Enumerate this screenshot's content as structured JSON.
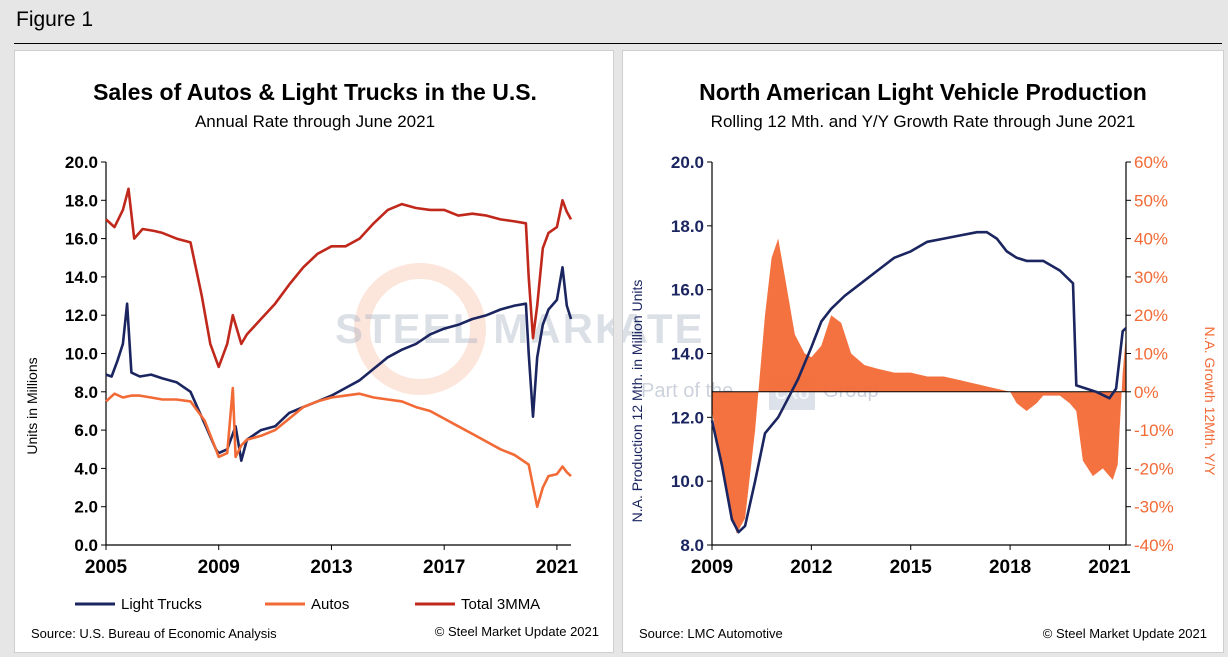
{
  "figure_label": "Figure 1",
  "chart_data": [
    {
      "type": "line",
      "title": "Sales of Autos & Light Trucks in the U.S.",
      "subtitle": "Annual Rate through June 2021",
      "ylabel": "Units in Millions",
      "ylim": [
        0,
        20
      ],
      "yticks": [
        "0.0",
        "2.0",
        "4.0",
        "6.0",
        "8.0",
        "10.0",
        "12.0",
        "14.0",
        "16.0",
        "18.0",
        "20.0"
      ],
      "xlim": [
        2005,
        2021.5
      ],
      "xticks": [
        "2005",
        "2009",
        "2013",
        "2017",
        "2021"
      ],
      "legend_position": "bottom",
      "series": [
        {
          "name": "Light Trucks",
          "color": "#1b2560",
          "x": [
            2005.0,
            2005.2,
            2005.4,
            2005.6,
            2005.75,
            2005.9,
            2006.2,
            2006.6,
            2007.0,
            2007.5,
            2008.0,
            2008.3,
            2008.6,
            2008.9,
            2009.0,
            2009.3,
            2009.6,
            2009.8,
            2010.0,
            2010.5,
            2011.0,
            2011.5,
            2012.0,
            2012.5,
            2013.0,
            2013.5,
            2014.0,
            2014.5,
            2015.0,
            2015.5,
            2016.0,
            2016.5,
            2017.0,
            2017.5,
            2018.0,
            2018.5,
            2019.0,
            2019.5,
            2019.9,
            2020.0,
            2020.15,
            2020.3,
            2020.5,
            2020.7,
            2021.0,
            2021.2,
            2021.35,
            2021.5
          ],
          "values": [
            8.9,
            8.8,
            9.6,
            10.5,
            12.6,
            9.0,
            8.8,
            8.9,
            8.7,
            8.5,
            8.0,
            7.0,
            6.0,
            5.0,
            4.8,
            5.0,
            6.2,
            4.4,
            5.5,
            6.0,
            6.2,
            6.9,
            7.2,
            7.5,
            7.8,
            8.2,
            8.6,
            9.2,
            9.8,
            10.2,
            10.5,
            11.0,
            11.3,
            11.5,
            11.8,
            12.0,
            12.3,
            12.5,
            12.6,
            10.0,
            6.7,
            9.8,
            11.5,
            12.3,
            12.8,
            14.5,
            12.5,
            11.8
          ]
        },
        {
          "name": "Autos",
          "color": "#f26a36",
          "x": [
            2005.0,
            2005.3,
            2005.6,
            2005.9,
            2006.2,
            2006.6,
            2007.0,
            2007.5,
            2008.0,
            2008.5,
            2008.9,
            2009.0,
            2009.3,
            2009.5,
            2009.6,
            2009.8,
            2010.0,
            2010.5,
            2011.0,
            2011.5,
            2012.0,
            2012.5,
            2013.0,
            2013.5,
            2014.0,
            2014.5,
            2015.0,
            2015.5,
            2016.0,
            2016.5,
            2017.0,
            2017.5,
            2018.0,
            2018.5,
            2019.0,
            2019.5,
            2020.0,
            2020.3,
            2020.5,
            2020.7,
            2021.0,
            2021.2,
            2021.35,
            2021.5
          ],
          "values": [
            7.5,
            7.9,
            7.7,
            7.8,
            7.8,
            7.7,
            7.6,
            7.6,
            7.5,
            6.5,
            5.0,
            4.6,
            4.8,
            8.2,
            4.6,
            5.2,
            5.5,
            5.7,
            6.0,
            6.6,
            7.2,
            7.5,
            7.7,
            7.8,
            7.9,
            7.7,
            7.6,
            7.5,
            7.2,
            7.0,
            6.6,
            6.2,
            5.8,
            5.4,
            5.0,
            4.7,
            4.2,
            2.0,
            3.0,
            3.6,
            3.7,
            4.1,
            3.8,
            3.6
          ]
        },
        {
          "name": "Total 3MMA",
          "color": "#c0281c",
          "x": [
            2005.0,
            2005.3,
            2005.6,
            2005.8,
            2006.0,
            2006.3,
            2006.7,
            2007.0,
            2007.5,
            2008.0,
            2008.4,
            2008.7,
            2009.0,
            2009.3,
            2009.5,
            2009.8,
            2010.0,
            2010.5,
            2011.0,
            2011.5,
            2012.0,
            2012.5,
            2013.0,
            2013.5,
            2014.0,
            2014.5,
            2015.0,
            2015.5,
            2016.0,
            2016.5,
            2017.0,
            2017.5,
            2018.0,
            2018.5,
            2019.0,
            2019.5,
            2019.9,
            2020.0,
            2020.15,
            2020.3,
            2020.5,
            2020.7,
            2021.0,
            2021.2,
            2021.35,
            2021.5
          ],
          "values": [
            17.0,
            16.6,
            17.5,
            18.6,
            16.0,
            16.5,
            16.4,
            16.3,
            16.0,
            15.8,
            13.0,
            10.5,
            9.3,
            10.5,
            12.0,
            10.5,
            11.0,
            11.8,
            12.6,
            13.6,
            14.5,
            15.2,
            15.6,
            15.6,
            16.0,
            16.8,
            17.5,
            17.8,
            17.6,
            17.5,
            17.5,
            17.2,
            17.3,
            17.2,
            17.0,
            16.9,
            16.8,
            14.0,
            10.8,
            12.5,
            15.5,
            16.3,
            16.6,
            18.0,
            17.4,
            17.0
          ]
        }
      ],
      "source": "Source: U.S. Bureau of Economic Analysis",
      "copyright": "© Steel Market Update 2021"
    },
    {
      "type": "line",
      "title": "North American Light Vehicle Production",
      "subtitle": "Rolling 12 Mth. and Y/Y Growth Rate through June 2021",
      "ylabel": "N.A. Production 12 Mth. in Million Units",
      "y2label": "N.A. Growth 12Mth. Y/Y",
      "ylim": [
        8,
        20
      ],
      "y2lim": [
        -40,
        60
      ],
      "yticks": [
        "8.0",
        "10.0",
        "12.0",
        "14.0",
        "16.0",
        "18.0",
        "20.0"
      ],
      "y2ticks": [
        "-40%",
        "-30%",
        "-20%",
        "-10%",
        "0%",
        "10%",
        "20%",
        "30%",
        "40%",
        "50%",
        "60%"
      ],
      "xlim": [
        2009,
        2021.5
      ],
      "xticks": [
        "2009",
        "2012",
        "2015",
        "2018",
        "2021"
      ],
      "series": [
        {
          "name": "N.A. Production 12 Mth.",
          "color": "#1b2560",
          "axis": "left",
          "x": [
            2009.0,
            2009.3,
            2009.6,
            2009.8,
            2010.0,
            2010.3,
            2010.6,
            2011.0,
            2011.3,
            2011.6,
            2012.0,
            2012.3,
            2012.6,
            2013.0,
            2013.5,
            2014.0,
            2014.5,
            2015.0,
            2015.5,
            2016.0,
            2016.5,
            2017.0,
            2017.3,
            2017.6,
            2017.9,
            2018.2,
            2018.5,
            2019.0,
            2019.5,
            2019.9,
            2020.0,
            2020.3,
            2020.6,
            2021.0,
            2021.2,
            2021.4,
            2021.5
          ],
          "values": [
            11.9,
            10.5,
            8.8,
            8.4,
            8.6,
            10.0,
            11.5,
            12.0,
            12.6,
            13.2,
            14.2,
            15.0,
            15.4,
            15.8,
            16.2,
            16.6,
            17.0,
            17.2,
            17.5,
            17.6,
            17.7,
            17.8,
            17.8,
            17.6,
            17.2,
            17.0,
            16.9,
            16.9,
            16.6,
            16.2,
            13.0,
            12.9,
            12.8,
            12.6,
            12.9,
            14.7,
            14.8
          ]
        },
        {
          "name": "N.A. Growth 12Mth. Y/Y",
          "color": "#f26a36",
          "axis": "right",
          "kind": "area",
          "x": [
            2009.0,
            2009.3,
            2009.5,
            2009.75,
            2010.0,
            2010.3,
            2010.6,
            2010.8,
            2011.0,
            2011.2,
            2011.5,
            2011.8,
            2012.0,
            2012.3,
            2012.6,
            2012.9,
            2013.2,
            2013.6,
            2014.0,
            2014.5,
            2015.0,
            2015.5,
            2016.0,
            2016.5,
            2017.0,
            2017.5,
            2018.0,
            2018.2,
            2018.5,
            2018.8,
            2019.0,
            2019.5,
            2019.8,
            2020.0,
            2020.2,
            2020.5,
            2020.8,
            2021.0,
            2021.1,
            2021.25,
            2021.4,
            2021.5
          ],
          "values": [
            -5,
            -20,
            -30,
            -37,
            -33,
            -10,
            20,
            35,
            40,
            30,
            15,
            10,
            9,
            12,
            20,
            18,
            10,
            7,
            6,
            5,
            5,
            4,
            4,
            3,
            2,
            1,
            0,
            -3,
            -5,
            -3,
            -1,
            -1,
            -3,
            -5,
            -18,
            -22,
            -20,
            -22,
            -23,
            -19,
            5,
            15
          ]
        }
      ],
      "source": "Source: LMC Automotive",
      "copyright": "© Steel Market Update 2021"
    }
  ],
  "watermark": {
    "brand": "STEEL MARKET UPDATE",
    "brand_left": "STEEL MARKET",
    "brand_right": "UPDATE",
    "tagline": "Part of the CRU Group",
    "tagline_left": "Part of the",
    "tagline_logo": "CRU",
    "tagline_right": "Group"
  }
}
